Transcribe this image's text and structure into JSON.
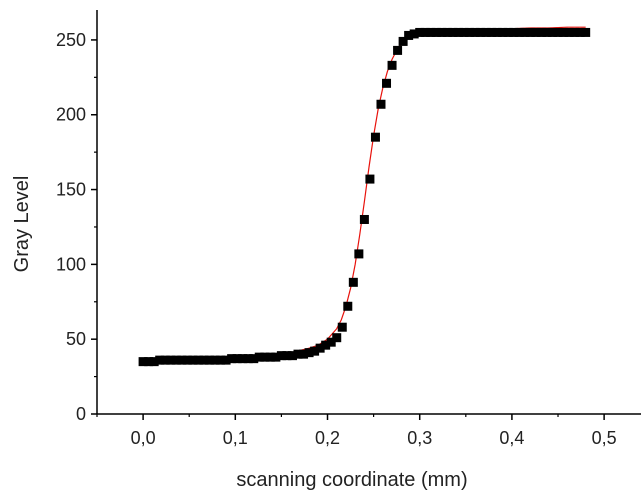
{
  "chart_data": {
    "type": "scatter",
    "title": "",
    "xlabel": "scanning coordinate (mm)",
    "ylabel": "Gray Level",
    "xlim": [
      -0.05,
      0.54
    ],
    "ylim": [
      0,
      270
    ],
    "x_ticks": [
      0.0,
      0.1,
      0.2,
      0.3,
      0.4,
      0.5
    ],
    "x_tick_labels": [
      "0,0",
      "0,1",
      "0,2",
      "0,3",
      "0,4",
      "0,5"
    ],
    "y_ticks": [
      0,
      50,
      100,
      150,
      200,
      250
    ],
    "y_tick_labels": [
      "0",
      "50",
      "100",
      "150",
      "200",
      "250"
    ],
    "grid": false,
    "marker_color": "#000000",
    "fit_color": "#e8120c",
    "series": [
      {
        "kind": "points",
        "x": [
          0.0,
          0.006,
          0.012,
          0.018,
          0.024,
          0.03,
          0.036,
          0.042,
          0.048,
          0.054,
          0.06,
          0.066,
          0.072,
          0.078,
          0.084,
          0.09,
          0.096,
          0.102,
          0.108,
          0.114,
          0.12,
          0.126,
          0.132,
          0.138,
          0.144,
          0.15,
          0.156,
          0.162,
          0.168,
          0.174,
          0.18,
          0.186,
          0.192,
          0.198,
          0.204,
          0.21,
          0.216,
          0.222,
          0.228,
          0.234,
          0.24,
          0.246,
          0.252,
          0.258,
          0.264,
          0.27,
          0.276,
          0.282,
          0.288,
          0.294,
          0.3,
          0.306,
          0.312,
          0.318,
          0.324,
          0.33,
          0.336,
          0.342,
          0.348,
          0.354,
          0.36,
          0.366,
          0.372,
          0.378,
          0.384,
          0.39,
          0.396,
          0.402,
          0.408,
          0.414,
          0.42,
          0.426,
          0.432,
          0.438,
          0.444,
          0.45,
          0.456,
          0.462,
          0.468,
          0.474,
          0.48
        ],
        "y": [
          35,
          35,
          35,
          36,
          36,
          36,
          36,
          36,
          36,
          36,
          36,
          36,
          36,
          36,
          36,
          36,
          37,
          37,
          37,
          37,
          37,
          38,
          38,
          38,
          38,
          39,
          39,
          39,
          40,
          40,
          41,
          42,
          44,
          46,
          48,
          51,
          58,
          72,
          88,
          107,
          130,
          157,
          185,
          207,
          221,
          233,
          243,
          249,
          253,
          254,
          255,
          255,
          255,
          255,
          255,
          255,
          255,
          255,
          255,
          255,
          255,
          255,
          255,
          255,
          255,
          255,
          255,
          255,
          255,
          255,
          255,
          255,
          255,
          255,
          255,
          255,
          255,
          255,
          255,
          255,
          255
        ]
      },
      {
        "kind": "fit",
        "x": [
          0.0,
          0.02,
          0.04,
          0.06,
          0.08,
          0.1,
          0.12,
          0.14,
          0.16,
          0.18,
          0.19,
          0.2,
          0.21,
          0.215,
          0.22,
          0.225,
          0.23,
          0.235,
          0.24,
          0.245,
          0.25,
          0.255,
          0.26,
          0.265,
          0.27,
          0.275,
          0.28,
          0.285,
          0.29,
          0.3,
          0.31,
          0.32,
          0.33,
          0.34,
          0.36,
          0.38,
          0.4,
          0.42,
          0.44,
          0.46,
          0.48
        ],
        "y": [
          33.5,
          34,
          34.5,
          35,
          35.5,
          36.5,
          37.5,
          39,
          41,
          44,
          46,
          50,
          57,
          63,
          72,
          84,
          100,
          120,
          142,
          165,
          186,
          204,
          218,
          229,
          237,
          243,
          247,
          250,
          252,
          254.5,
          255.5,
          256,
          256.5,
          257,
          257,
          257.5,
          257.5,
          258,
          258,
          258.5,
          258.5
        ]
      }
    ]
  }
}
